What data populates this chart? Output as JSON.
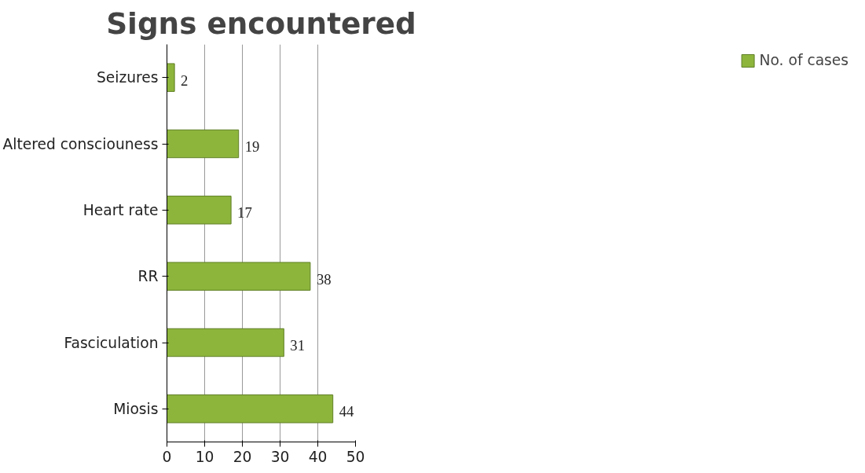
{
  "chart_data": {
    "type": "bar",
    "orientation": "horizontal",
    "title": "Signs encountered",
    "categories": [
      "Seizures",
      "Altered consciouness",
      "Heart rate",
      "RR",
      "Fasciculation",
      "Miosis"
    ],
    "series": [
      {
        "name": "No. of cases",
        "color": "#8db53c",
        "values": [
          2,
          19,
          17,
          38,
          31,
          44
        ]
      }
    ],
    "xlim": [
      0,
      50
    ],
    "xticks": [
      0,
      10,
      20,
      30,
      40,
      50
    ],
    "grid": "x",
    "legend": "right",
    "data_labels": true
  }
}
